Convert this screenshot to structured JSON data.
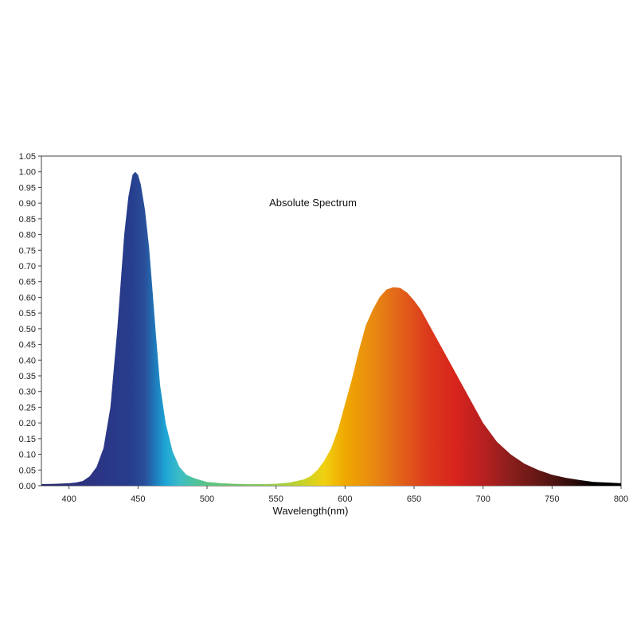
{
  "chart_data": {
    "type": "area",
    "title": "Absolute Spectrum",
    "xlabel": "Wavelength(nm)",
    "ylabel": "",
    "xlim": [
      380,
      800
    ],
    "ylim": [
      0,
      1.05
    ],
    "x_ticks": [
      400,
      450,
      500,
      550,
      600,
      650,
      700,
      750,
      800
    ],
    "y_ticks": [
      0.0,
      0.05,
      0.1,
      0.15,
      0.2,
      0.25,
      0.3,
      0.35,
      0.4,
      0.45,
      0.5,
      0.55,
      0.6,
      0.65,
      0.7,
      0.75,
      0.8,
      0.85,
      0.9,
      0.95,
      1.0,
      1.05
    ],
    "grid": false,
    "fill": "wavelength-spectrum-colors",
    "series": [
      {
        "x": [
          380,
          390,
          400,
          405,
          410,
          415,
          420,
          425,
          430,
          435,
          440,
          443,
          446,
          448,
          450,
          452,
          455,
          458,
          460,
          463,
          466,
          470,
          475,
          480,
          485,
          490,
          495,
          500,
          510,
          520,
          530,
          540,
          550,
          560,
          570,
          575,
          580,
          585,
          590,
          595,
          600,
          605,
          610,
          615,
          620,
          625,
          630,
          635,
          640,
          645,
          650,
          655,
          660,
          665,
          670,
          680,
          690,
          700,
          710,
          720,
          730,
          740,
          750,
          760,
          770,
          780,
          790,
          800
        ],
        "values": [
          0.005,
          0.006,
          0.008,
          0.01,
          0.015,
          0.03,
          0.06,
          0.12,
          0.25,
          0.5,
          0.8,
          0.92,
          0.99,
          1.0,
          0.99,
          0.96,
          0.88,
          0.76,
          0.65,
          0.48,
          0.32,
          0.2,
          0.11,
          0.06,
          0.035,
          0.025,
          0.018,
          0.012,
          0.008,
          0.006,
          0.005,
          0.005,
          0.006,
          0.01,
          0.02,
          0.03,
          0.05,
          0.08,
          0.12,
          0.18,
          0.26,
          0.34,
          0.43,
          0.51,
          0.56,
          0.6,
          0.625,
          0.632,
          0.63,
          0.615,
          0.59,
          0.56,
          0.52,
          0.48,
          0.44,
          0.36,
          0.28,
          0.2,
          0.14,
          0.1,
          0.07,
          0.05,
          0.035,
          0.025,
          0.018,
          0.012,
          0.01,
          0.008
        ]
      }
    ]
  }
}
